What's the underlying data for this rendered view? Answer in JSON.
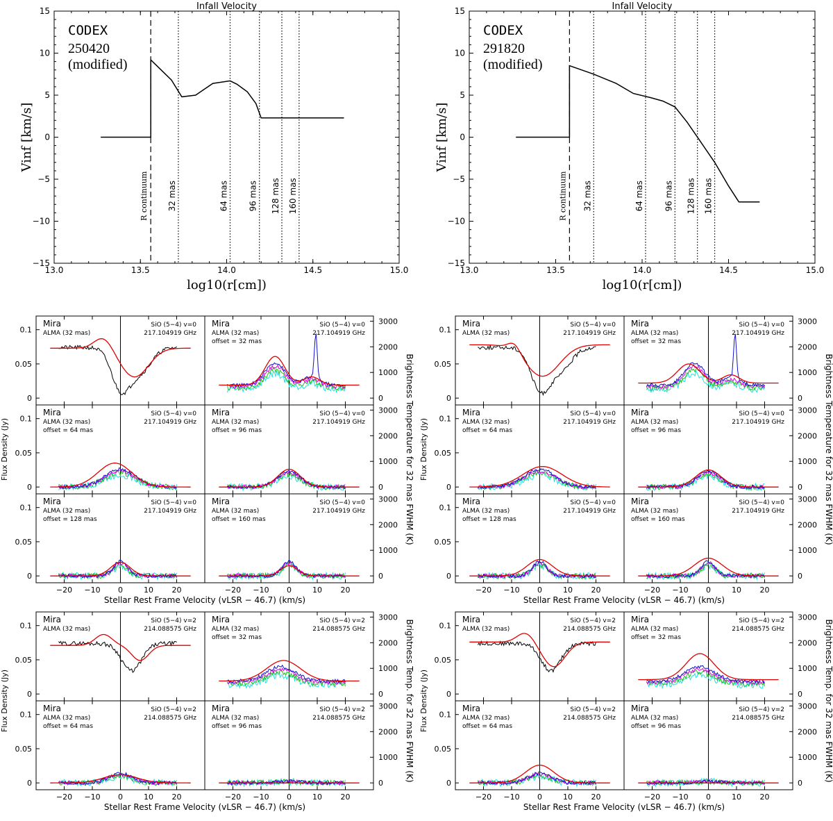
{
  "colors": {
    "observed": "#000000",
    "model": "#e00000",
    "ch_blue": "#1010c8",
    "ch_magenta": "#e000e0",
    "ch_green": "#20c020",
    "ch_cyan": "#20e0e0"
  },
  "infall": {
    "title": "Infall Velocity",
    "xlabel": "log10(r[cm])",
    "ylabel": "Vinf [km/s]",
    "r_continuum_label": "R continuum",
    "mas_labels": [
      "32 mas",
      "64 mas",
      "96 mas",
      "128 mas",
      "160 mas"
    ]
  },
  "spectra": {
    "source": "Mira",
    "telescope": "ALMA (32 mas)",
    "offset_prefix": "offset = ",
    "v0_line": "SiO (5−4) v=0",
    "v0_freq": "217.104919 GHz",
    "v2_line": "SiO (5−4) v=2",
    "v2_freq": "214.088575 GHz",
    "y_left_label": "Flux Density (Jy)",
    "y_right_label_v0": "Brightness Temperature for 32 mas FWHM (K)",
    "y_right_label_v2": "Brightness Temp. for 32 mas FWHM (K)",
    "xlabel": "Stellar Rest Frame Velocity (vLSR − 46.7) (km/s)"
  },
  "chart_data": [
    {
      "type": "line",
      "id": "infall-250420",
      "title": "Infall Velocity",
      "annotation": [
        "CODEX",
        "250420",
        "(modified)"
      ],
      "xlabel": "log10(r[cm])",
      "ylabel": "Vinf [km/s]",
      "xlim": [
        13.0,
        15.0
      ],
      "ylim": [
        -15,
        15
      ],
      "xticks": [
        13.0,
        13.5,
        14.0,
        14.5,
        15.0
      ],
      "yticks": [
        -15,
        -10,
        -5,
        0,
        5,
        10,
        15
      ],
      "r_continuum": 13.56,
      "mas_radii": [
        13.72,
        14.02,
        14.19,
        14.32,
        14.42
      ],
      "x": [
        13.27,
        13.56,
        13.56,
        13.62,
        13.68,
        13.74,
        13.82,
        13.92,
        14.02,
        14.06,
        14.12,
        14.17,
        14.2,
        14.68
      ],
      "y": [
        0,
        0,
        9.2,
        8.0,
        6.8,
        4.8,
        5.0,
        6.4,
        6.7,
        6.3,
        5.4,
        4.0,
        2.3,
        2.3
      ]
    },
    {
      "type": "line",
      "id": "infall-291820",
      "title": "Infall Velocity",
      "annotation": [
        "CODEX",
        "291820",
        "(modified)"
      ],
      "xlabel": "log10(r[cm])",
      "ylabel": "Vinf [km/s]",
      "xlim": [
        13.0,
        15.0
      ],
      "ylim": [
        -15,
        15
      ],
      "xticks": [
        13.0,
        13.5,
        14.0,
        14.5,
        15.0
      ],
      "yticks": [
        -15,
        -10,
        -5,
        0,
        5,
        10,
        15
      ],
      "r_continuum": 13.58,
      "mas_radii": [
        13.72,
        14.02,
        14.19,
        14.32,
        14.42
      ],
      "x": [
        13.27,
        13.58,
        13.58,
        13.72,
        13.85,
        13.95,
        14.05,
        14.12,
        14.19,
        14.26,
        14.33,
        14.42,
        14.5,
        14.56,
        14.68
      ],
      "y": [
        0,
        0,
        8.5,
        7.5,
        6.4,
        5.2,
        4.7,
        4.3,
        3.6,
        1.8,
        -0.3,
        -3.0,
        -5.8,
        -7.7,
        -7.7
      ]
    },
    {
      "type": "line",
      "id": "spectra-v0",
      "xlabel": "Stellar Rest Frame Velocity (vLSR − 46.7) (km/s)",
      "ylabel": "Flux Density (Jy)",
      "xlim": [
        -30,
        30
      ],
      "ylim": [
        -0.01,
        0.12
      ],
      "y2lim": [
        -267,
        3200
      ],
      "xticks": [
        -20,
        -10,
        0,
        10,
        20
      ],
      "yticks": [
        0,
        0.05,
        0.1
      ],
      "y2ticks": [
        0,
        1000,
        2000,
        3000
      ],
      "panels": [
        "central",
        "offset = 32 mas",
        "offset = 64 mas",
        "offset = 96 mas",
        "offset = 128 mas",
        "offset = 160 mas"
      ]
    },
    {
      "type": "line",
      "id": "spectra-v2",
      "xlabel": "Stellar Rest Frame Velocity (vLSR − 46.7) (km/s)",
      "ylabel": "Flux Density (Jy)",
      "xlim": [
        -30,
        30
      ],
      "ylim": [
        -0.01,
        0.12
      ],
      "y2lim": [
        -267,
        3200
      ],
      "xticks": [
        -20,
        -10,
        0,
        10,
        20
      ],
      "yticks": [
        0,
        0.05,
        0.1
      ],
      "y2ticks": [
        0,
        1000,
        2000,
        3000
      ],
      "panels": [
        "central",
        "offset = 32 mas",
        "offset = 64 mas",
        "offset = 96 mas"
      ]
    }
  ]
}
